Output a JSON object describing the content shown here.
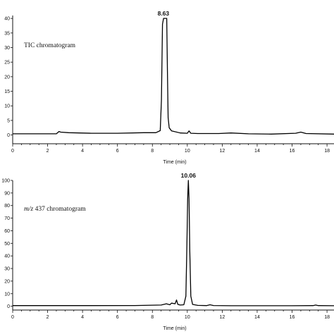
{
  "chart_data": [
    {
      "type": "line",
      "title": "",
      "annotation": "TIC chromatogram",
      "xlabel": "Time (min)",
      "ylabel": "",
      "xlim": [
        0,
        18.4
      ],
      "ylim": [
        -3,
        41
      ],
      "grid": false,
      "x_ticks": [
        "0",
        "2",
        "4",
        "6",
        "8",
        "10",
        "12",
        "14",
        "16",
        "18"
      ],
      "y_ticks": [
        "40",
        "35",
        "30",
        "25",
        "20",
        "15",
        "10",
        "5",
        "0"
      ],
      "peak_label": "8.63",
      "peak_x": 8.63,
      "series": [
        {
          "x": [
            0,
            2.5,
            2.65,
            2.75,
            3.2,
            4.5,
            6.0,
            7.5,
            8.2,
            8.45,
            8.52,
            8.58,
            8.64,
            8.74,
            8.82,
            8.86,
            8.9,
            8.96,
            9.1,
            9.6,
            10.0,
            10.1,
            10.2,
            10.6,
            11.8,
            12.5,
            13.5,
            14.8,
            16.2,
            16.5,
            16.8,
            18.4
          ],
          "y": [
            0.4,
            0.4,
            1.2,
            1.0,
            0.8,
            0.6,
            0.6,
            0.8,
            0.8,
            1.5,
            12,
            38,
            40,
            40,
            40,
            22,
            6,
            2.5,
            1.4,
            0.7,
            0.6,
            1.4,
            0.6,
            0.5,
            0.5,
            0.7,
            0.4,
            0.3,
            0.6,
            1.0,
            0.5,
            0.3
          ]
        }
      ]
    },
    {
      "type": "line",
      "title": "",
      "annotation": "m/z 437 chromatogram",
      "annotation_italic": "m/z",
      "annotation_rest": " 437 chromatogram",
      "xlabel": "Time (min)",
      "ylabel": "",
      "xlim": [
        0,
        18.4
      ],
      "ylim": [
        -3,
        100
      ],
      "grid": false,
      "x_ticks": [
        "0",
        "2",
        "4",
        "6",
        "8",
        "10",
        "12",
        "14",
        "16",
        "18"
      ],
      "y_ticks": [
        "100",
        "90",
        "80",
        "70",
        "60",
        "50",
        "40",
        "30",
        "20",
        "10",
        "0"
      ],
      "peak_label": "10.06",
      "peak_x": 10.06,
      "series": [
        {
          "x": [
            0,
            4,
            7,
            8.5,
            8.8,
            9.0,
            9.1,
            9.3,
            9.38,
            9.46,
            9.6,
            9.8,
            9.92,
            9.98,
            10.02,
            10.06,
            10.1,
            10.14,
            10.2,
            10.3,
            10.6,
            11.1,
            11.3,
            11.5,
            12.5,
            14,
            16,
            17.2,
            17.35,
            17.5,
            18.4
          ],
          "y": [
            0.5,
            0.5,
            0.6,
            1.0,
            2.0,
            1.2,
            2.5,
            2.0,
            5.0,
            1.5,
            1.0,
            1.2,
            8,
            50,
            85,
            100,
            85,
            45,
            8,
            1.5,
            0.7,
            0.5,
            1.2,
            0.6,
            0.4,
            0.4,
            0.4,
            0.5,
            1.0,
            0.5,
            0.4
          ]
        }
      ]
    }
  ]
}
